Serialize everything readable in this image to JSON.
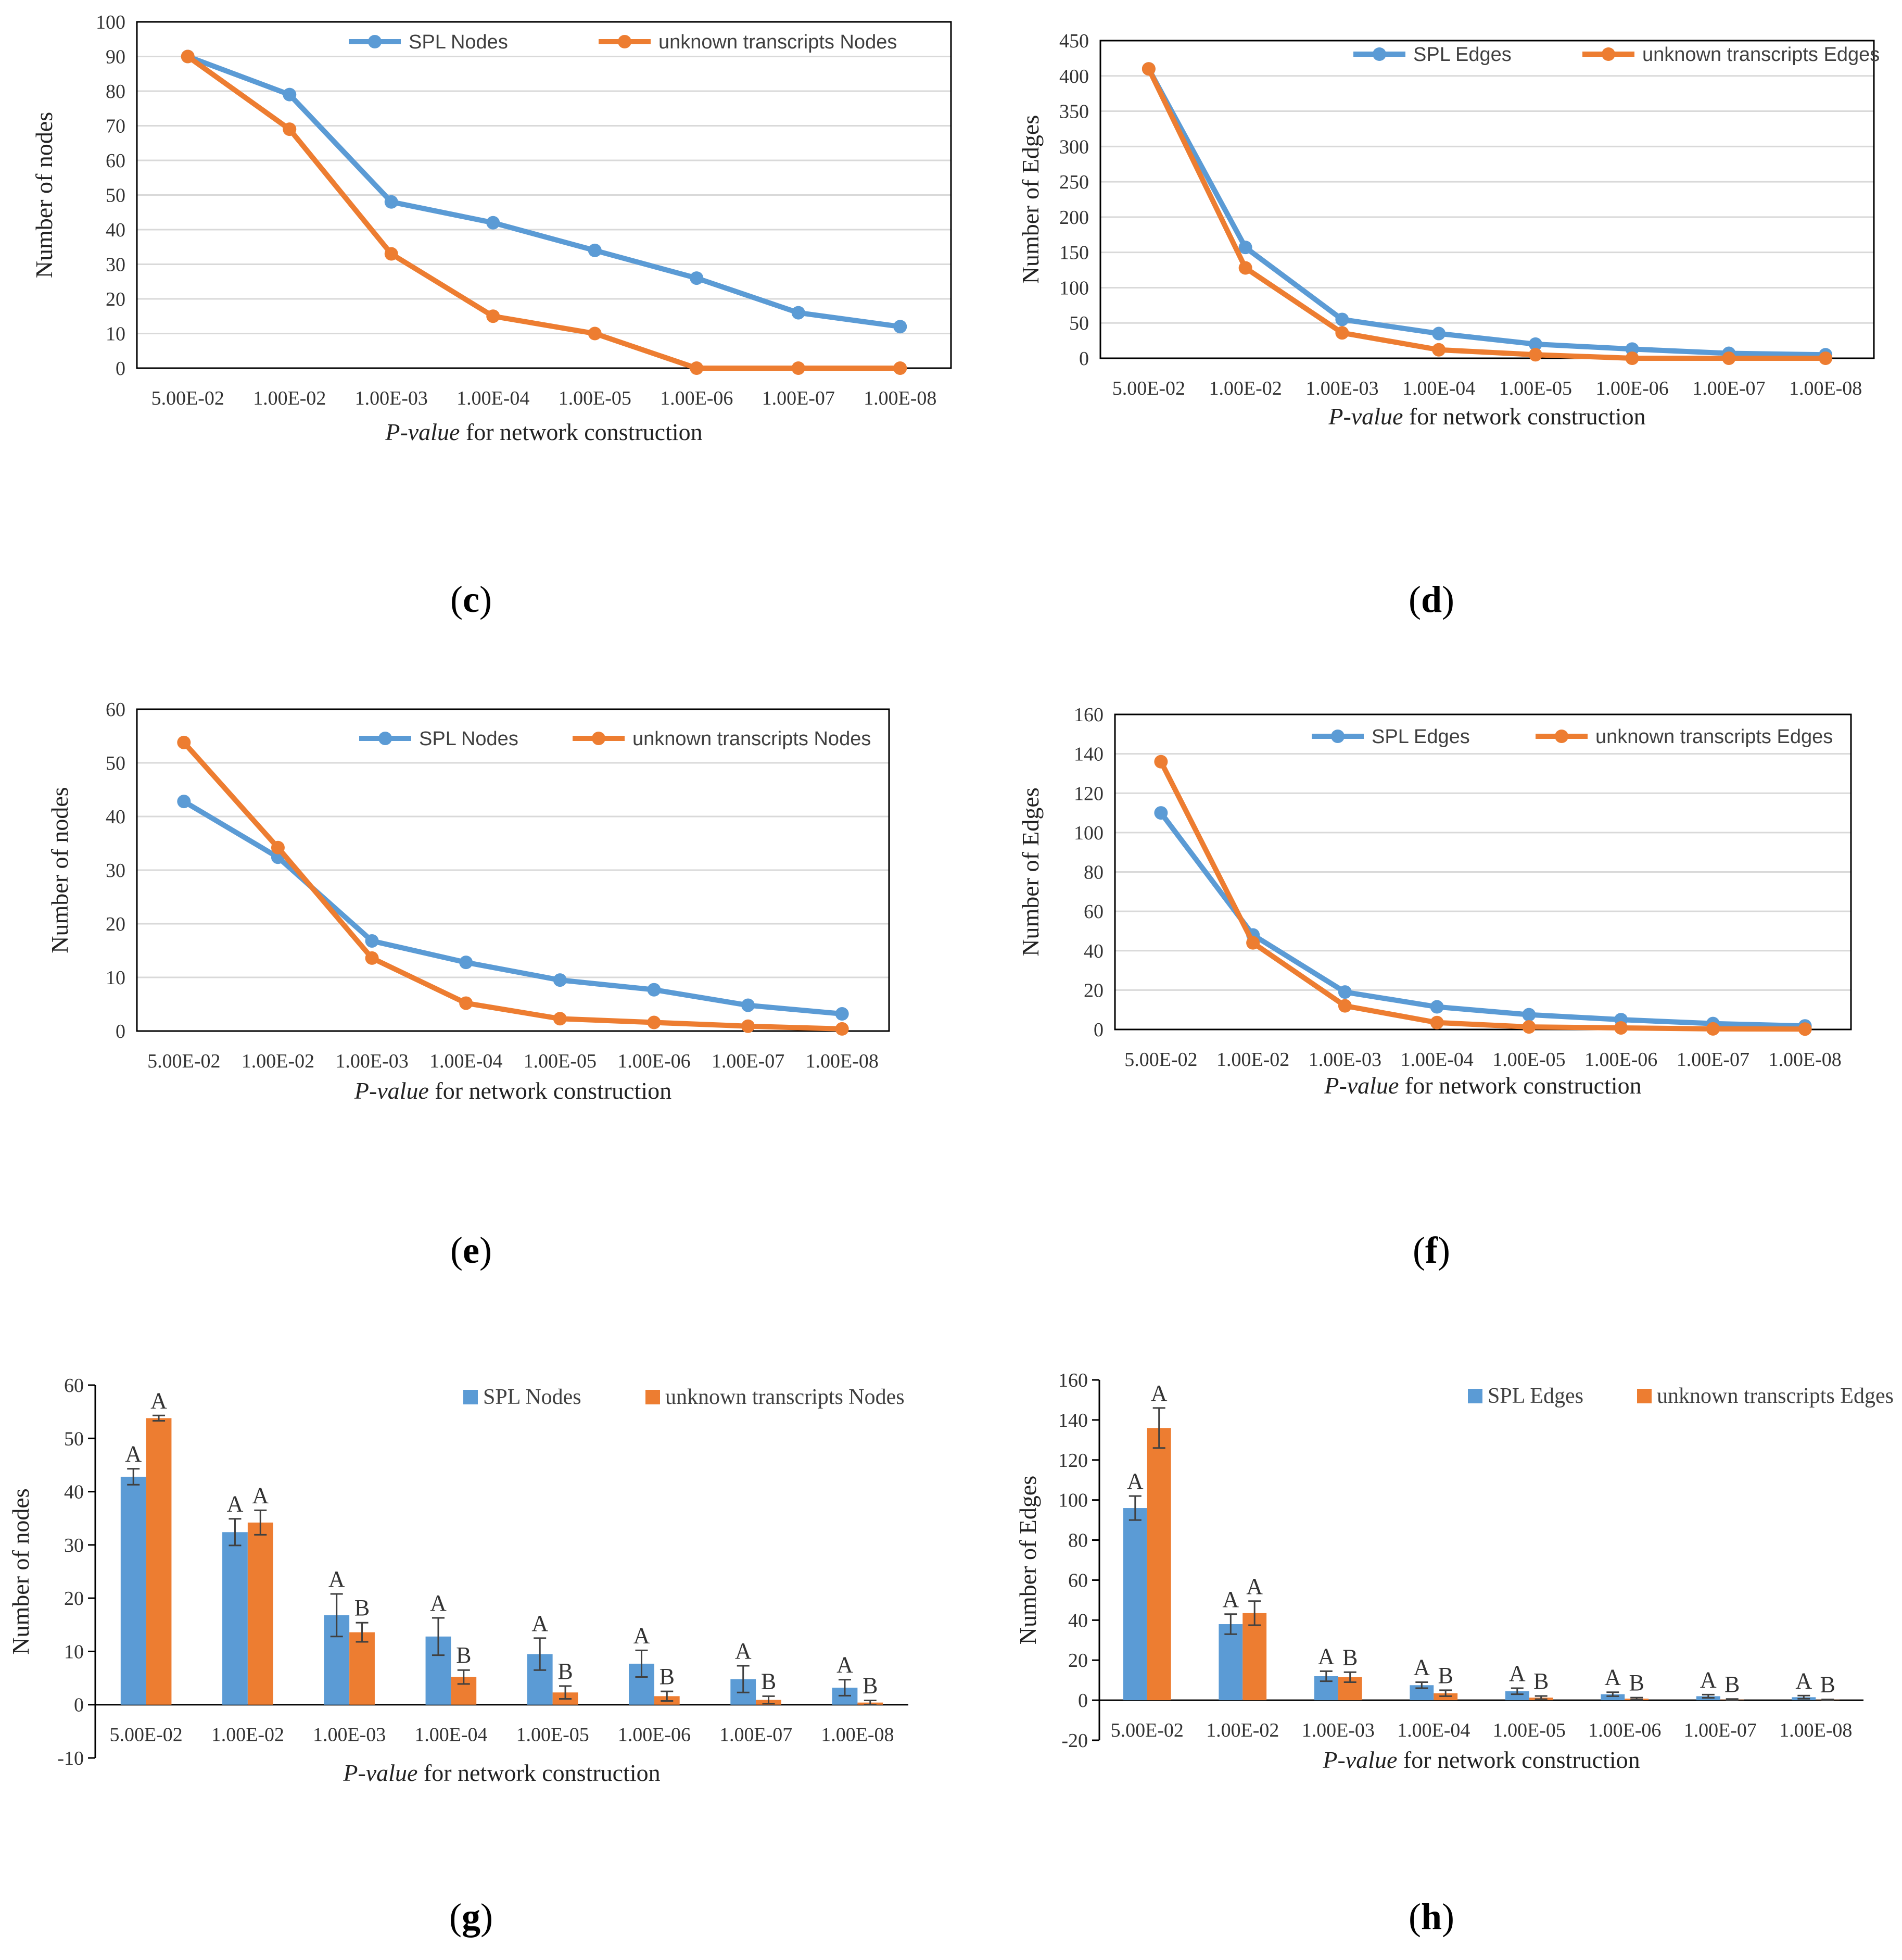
{
  "colors": {
    "spl": "#5b9bd5",
    "unknown": "#ed7d31",
    "grid": "#d9d9d9",
    "axis": "#000000",
    "errbar": "#404040"
  },
  "panel_labels": {
    "c": "c",
    "d": "d",
    "e": "e",
    "f": "f",
    "g": "g",
    "h": "h"
  },
  "chart_data": [
    {
      "id": "c",
      "type": "line",
      "categories": [
        "5.00E-02",
        "1.00E-02",
        "1.00E-03",
        "1.00E-04",
        "1.00E-05",
        "1.00E-06",
        "1.00E-07",
        "1.00E-08"
      ],
      "series": [
        {
          "name": "SPL Nodes",
          "color": "#5b9bd5",
          "values": [
            90,
            79,
            48,
            42,
            34,
            26,
            16,
            12
          ]
        },
        {
          "name": "unknown transcripts Nodes",
          "color": "#ed7d31",
          "values": [
            90,
            69,
            33,
            15,
            10,
            0,
            0,
            0
          ]
        }
      ],
      "ylabel": "Number of nodes",
      "xlabel_italic": "P-value",
      "xlabel_rest": " for network construction",
      "ylim": [
        0,
        100
      ],
      "ystep": 10,
      "grid": true,
      "legend": "top-right"
    },
    {
      "id": "d",
      "type": "line",
      "categories": [
        "5.00E-02",
        "1.00E-02",
        "1.00E-03",
        "1.00E-04",
        "1.00E-05",
        "1.00E-06",
        "1.00E-07",
        "1.00E-08"
      ],
      "series": [
        {
          "name": "SPL Edges",
          "color": "#5b9bd5",
          "values": [
            410,
            157,
            55,
            35,
            20,
            13,
            7,
            5
          ]
        },
        {
          "name": "unknown transcripts Edges",
          "color": "#ed7d31",
          "values": [
            410,
            128,
            36,
            12,
            5,
            0,
            0,
            0
          ]
        }
      ],
      "ylabel": "Number of Edges",
      "xlabel_italic": "P-value",
      "xlabel_rest": " for network construction",
      "ylim": [
        0,
        450
      ],
      "ystep": 50,
      "grid": true,
      "legend": "top-right"
    },
    {
      "id": "e",
      "type": "line",
      "categories": [
        "5.00E-02",
        "1.00E-02",
        "1.00E-03",
        "1.00E-04",
        "1.00E-05",
        "1.00E-06",
        "1.00E-07",
        "1.00E-08"
      ],
      "series": [
        {
          "name": "SPL Nodes",
          "color": "#5b9bd5",
          "values": [
            42.8,
            32.4,
            16.8,
            12.8,
            9.5,
            7.7,
            4.8,
            3.2
          ]
        },
        {
          "name": "unknown transcripts Nodes",
          "color": "#ed7d31",
          "values": [
            53.8,
            34.2,
            13.6,
            5.2,
            2.3,
            1.6,
            0.9,
            0.4
          ]
        }
      ],
      "ylabel": "Number of nodes",
      "xlabel_italic": "P-value",
      "xlabel_rest": " for network construction",
      "ylim": [
        0,
        60
      ],
      "ystep": 10,
      "grid": true,
      "legend": "top-right"
    },
    {
      "id": "f",
      "type": "line",
      "categories": [
        "5.00E-02",
        "1.00E-02",
        "1.00E-03",
        "1.00E-04",
        "1.00E-05",
        "1.00E-06",
        "1.00E-07",
        "1.00E-08"
      ],
      "series": [
        {
          "name": "SPL Edges",
          "color": "#5b9bd5",
          "values": [
            110,
            48,
            19,
            11.5,
            7.5,
            5,
            3,
            1.8
          ]
        },
        {
          "name": "unknown transcripts Edges",
          "color": "#ed7d31",
          "values": [
            136,
            44,
            12,
            3.5,
            1.3,
            0.8,
            0.3,
            0.2
          ]
        }
      ],
      "ylabel": "Number of Edges",
      "xlabel_italic": "P-value",
      "xlabel_rest": " for network construction",
      "ylim": [
        0,
        160
      ],
      "ystep": 20,
      "grid": true,
      "legend": "top-right"
    },
    {
      "id": "g",
      "type": "bar",
      "categories": [
        "5.00E-02",
        "1.00E-02",
        "1.00E-03",
        "1.00E-04",
        "1.00E-05",
        "1.00E-06",
        "1.00E-07",
        "1.00E-08"
      ],
      "series": [
        {
          "name": "SPL Nodes",
          "color": "#5b9bd5",
          "values": [
            42.8,
            32.4,
            16.8,
            12.8,
            9.5,
            7.7,
            4.8,
            3.2
          ],
          "errors": [
            1.5,
            2.5,
            4.0,
            3.5,
            3.0,
            2.5,
            2.5,
            1.5
          ],
          "labels": [
            "A",
            "A",
            "A",
            "A",
            "A",
            "A",
            "A",
            "A"
          ]
        },
        {
          "name": "unknown transcripts Nodes",
          "color": "#ed7d31",
          "values": [
            53.8,
            34.2,
            13.6,
            5.2,
            2.3,
            1.6,
            0.9,
            0.4
          ],
          "errors": [
            0.5,
            2.3,
            1.8,
            1.3,
            1.2,
            0.9,
            0.7,
            0.4
          ],
          "labels": [
            "A",
            "A",
            "B",
            "B",
            "B",
            "B",
            "B",
            "B"
          ]
        }
      ],
      "ylabel": "Number of nodes",
      "xlabel_italic": "P-value",
      "xlabel_rest": " for network construction",
      "ylim": [
        -10,
        60
      ],
      "ystep": 10,
      "grid": false,
      "legend": "top-right"
    },
    {
      "id": "h",
      "type": "bar",
      "categories": [
        "5.00E-02",
        "1.00E-02",
        "1.00E-03",
        "1.00E-04",
        "1.00E-05",
        "1.00E-06",
        "1.00E-07",
        "1.00E-08"
      ],
      "series": [
        {
          "name": "SPL Edges",
          "color": "#5b9bd5",
          "values": [
            96,
            38,
            12,
            7.5,
            4.5,
            3,
            2,
            1.5
          ],
          "errors": [
            6,
            5,
            2.5,
            1.5,
            1.5,
            1,
            0.8,
            0.8
          ],
          "labels": [
            "A",
            "A",
            "A",
            "A",
            "A",
            "A",
            "A",
            "A"
          ]
        },
        {
          "name": "unknown transcripts Edges",
          "color": "#ed7d31",
          "values": [
            136,
            43.5,
            11.5,
            3.5,
            1.3,
            0.8,
            0.3,
            0.2
          ],
          "errors": [
            10,
            6,
            2.5,
            1.5,
            0.8,
            0.5,
            0.3,
            0.2
          ],
          "labels": [
            "A",
            "A",
            "B",
            "B",
            "B",
            "B",
            "B",
            "B"
          ]
        }
      ],
      "ylabel": "Number of Edges",
      "xlabel_italic": "P-value",
      "xlabel_rest": " for network construction",
      "ylim": [
        -20,
        160
      ],
      "ystep": 20,
      "grid": false,
      "legend": "top-right"
    }
  ]
}
